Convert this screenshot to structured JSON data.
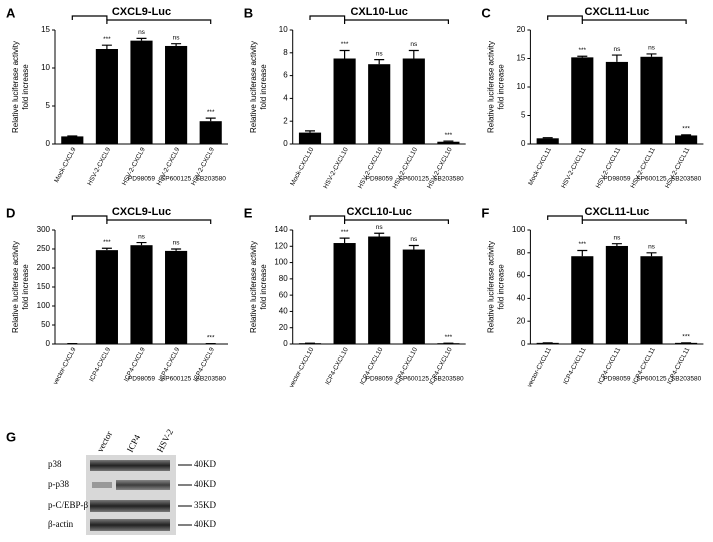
{
  "chart_data": [
    {
      "type": "bar",
      "panel": "A",
      "title": "CXCL9-Luc",
      "ylabel": [
        "Relative luciferase activity",
        "fold increase"
      ],
      "categories": [
        "Mock-CXCL9",
        "HSV-2-CXCL9",
        "HSV-2-CXCL9",
        "HSV-2-CXCL9",
        "HSV-2-CXCL9"
      ],
      "inhibitors": [
        null,
        null,
        "PD98059",
        "SP600125",
        "SB203580"
      ],
      "values": [
        1,
        12.5,
        13.6,
        12.9,
        3.0
      ],
      "errors": [
        0.05,
        0.5,
        0.3,
        0.3,
        0.4
      ],
      "annotations": [
        null,
        "***",
        "ns",
        "ns",
        "***"
      ],
      "color": "#000000",
      "ylim": [
        0,
        15
      ],
      "yticks": [
        0,
        5,
        10,
        15
      ]
    },
    {
      "type": "bar",
      "panel": "B",
      "title": "CXL10-Luc",
      "ylabel": [
        "Relative luciferase activity",
        "fold increase"
      ],
      "categories": [
        "Mock-CXCL10",
        "HSV-2-CXCL10",
        "HSV-2-CXCL10",
        "HSV-2-CXCL10",
        "HSV-2-CXCL10"
      ],
      "inhibitors": [
        null,
        null,
        "PD98059",
        "SP600125",
        "SB203580"
      ],
      "values": [
        1,
        7.5,
        7.0,
        7.5,
        0.2
      ],
      "errors": [
        0.15,
        0.7,
        0.4,
        0.7,
        0.05
      ],
      "annotations": [
        null,
        "***",
        "ns",
        "ns",
        "***"
      ],
      "color": "#000000",
      "ylim": [
        0,
        10
      ],
      "yticks": [
        0,
        2,
        4,
        6,
        8,
        10
      ]
    },
    {
      "type": "bar",
      "panel": "C",
      "title": "CXCL11-Luc",
      "ylabel": [
        "Relative luciferase activity",
        "fold increase"
      ],
      "categories": [
        "Mock-CXCL11",
        "HSV-2-CXCL11",
        "HSV-2-CXCL11",
        "HSV-2-CXCL11",
        "HSV-2-CXCL11"
      ],
      "inhibitors": [
        null,
        null,
        "PD98059",
        "SP600125",
        "SB203580"
      ],
      "values": [
        1,
        15.2,
        14.4,
        15.3,
        1.5
      ],
      "errors": [
        0.1,
        0.2,
        1.2,
        0.5,
        0.1
      ],
      "annotations": [
        null,
        "***",
        "ns",
        "ns",
        "***"
      ],
      "color": "#000000",
      "ylim": [
        0,
        20
      ],
      "yticks": [
        0,
        5,
        10,
        15,
        20
      ]
    },
    {
      "type": "bar",
      "panel": "D",
      "title": "CXCL9-Luc",
      "ylabel": [
        "Relative luciferase activity",
        "fold increase"
      ],
      "categories": [
        "vector-CXCL9",
        "ICP4-CXCL9",
        "ICP4-CXCL9",
        "ICP4-CXCL9",
        "ICP4-CXCL9"
      ],
      "inhibitors": [
        null,
        null,
        "PD98059",
        "SP600125",
        "SB203580"
      ],
      "values": [
        1,
        247,
        260,
        245,
        1
      ],
      "errors": [
        0,
        5,
        7,
        5,
        0
      ],
      "annotations": [
        null,
        "***",
        "ns",
        "ns",
        "***"
      ],
      "color": "#000000",
      "ylim": [
        0,
        300
      ],
      "yticks": [
        0,
        50,
        100,
        150,
        200,
        250,
        300
      ]
    },
    {
      "type": "bar",
      "panel": "E",
      "title": "CXCL10-Luc",
      "ylabel": [
        "Relative luciferase activity",
        "fold increase"
      ],
      "categories": [
        "vector-CXCL10",
        "ICP4-CXCL10",
        "ICP4-CXCL10",
        "ICP4-CXCL10",
        "ICP4-CXCL10"
      ],
      "inhibitors": [
        null,
        null,
        "PD98059",
        "SP600125",
        "SB203580"
      ],
      "values": [
        1,
        124,
        132,
        116,
        1
      ],
      "errors": [
        0,
        6,
        4,
        5,
        0
      ],
      "annotations": [
        null,
        "***",
        "ns",
        "ns",
        "***"
      ],
      "color": "#000000",
      "ylim": [
        0,
        140
      ],
      "yticks": [
        0,
        20,
        40,
        60,
        80,
        100,
        120,
        140
      ]
    },
    {
      "type": "bar",
      "panel": "F",
      "title": "CXCL11-Luc",
      "ylabel": [
        "Relative luciferase activity",
        "fold increase"
      ],
      "categories": [
        "vector-CXCL11",
        "ICP4-CXCL11",
        "ICP4-CXCL11",
        "ICP4-CXCL11",
        "ICP4-CXCL11"
      ],
      "inhibitors": [
        null,
        null,
        "PD98059",
        "SP600125",
        "SB203580"
      ],
      "values": [
        1,
        77,
        86,
        77,
        1
      ],
      "errors": [
        0,
        5,
        2,
        3,
        0
      ],
      "annotations": [
        null,
        "***",
        "ns",
        "ns",
        "***"
      ],
      "color": "#000000",
      "ylim": [
        0,
        100
      ],
      "yticks": [
        0,
        20,
        40,
        60,
        80,
        100
      ]
    }
  ],
  "blot": {
    "panel": "G",
    "lanes": [
      "vector",
      "ICP4",
      "HSV-2"
    ],
    "rows": [
      {
        "label": "p38",
        "size": "40KD"
      },
      {
        "label": "p-p38",
        "size": "40KD"
      },
      {
        "label": "p-C/EBP-β",
        "size": "35KD"
      },
      {
        "label": "β-actin",
        "size": "40KD"
      }
    ]
  }
}
